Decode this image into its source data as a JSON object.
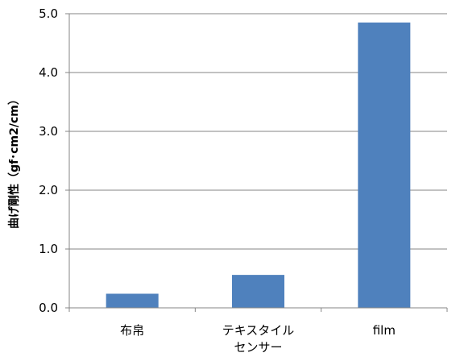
{
  "chart_data": {
    "type": "bar",
    "title": "",
    "xlabel": "",
    "ylabel": "曲げ剛性（gf･cm2/cm）",
    "categories": [
      [
        "布帛"
      ],
      [
        "テキスタイル",
        "センサー"
      ],
      [
        "film"
      ]
    ],
    "values": [
      0.24,
      0.56,
      4.85
    ],
    "ylim": [
      0,
      5.0
    ],
    "yticks": [
      "0.0",
      "1.0",
      "2.0",
      "3.0",
      "4.0",
      "5.0"
    ],
    "grid": true,
    "legend": "none",
    "bar_color": "#4f81bd"
  }
}
